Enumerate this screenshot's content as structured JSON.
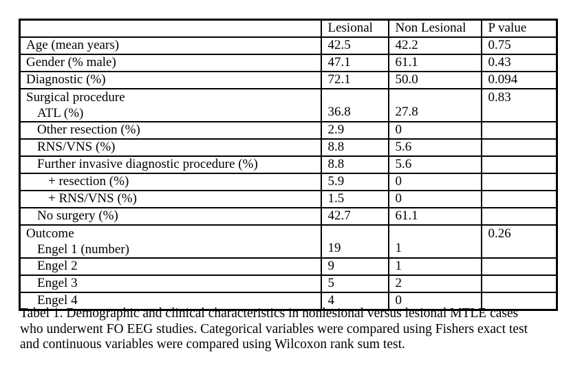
{
  "table": {
    "columns": [
      "",
      "Lesional",
      "Non Lesional",
      "P value"
    ],
    "rows": [
      {
        "label": "Age (mean years)",
        "indent": 0,
        "lesional": "42.5",
        "non_lesional": "42.2",
        "p_value": "0.75"
      },
      {
        "label": "Gender (% male)",
        "indent": 0,
        "lesional": "47.1",
        "non_lesional": "61.1",
        "p_value": "0.43"
      },
      {
        "label": "Diagnostic (%)",
        "indent": 0,
        "lesional": "72.1",
        "non_lesional": "50.0",
        "p_value": "0.094"
      },
      {
        "group_label": "Surgical procedure",
        "label": "ATL (%)",
        "indent": 1,
        "lesional": "36.8",
        "non_lesional": "27.8",
        "p_value": "0.83"
      },
      {
        "label": "Other resection (%)",
        "indent": 1,
        "lesional": "2.9",
        "non_lesional": "0",
        "p_value": ""
      },
      {
        "label": "RNS/VNS (%)",
        "indent": 1,
        "lesional": "8.8",
        "non_lesional": "5.6",
        "p_value": ""
      },
      {
        "label": "Further invasive diagnostic procedure (%)",
        "indent": 1,
        "lesional": "8.8",
        "non_lesional": "5.6",
        "p_value": ""
      },
      {
        "label": "+ resection (%)",
        "indent": 2,
        "lesional": "5.9",
        "non_lesional": "0",
        "p_value": ""
      },
      {
        "label": "+ RNS/VNS (%)",
        "indent": 2,
        "lesional": "1.5",
        "non_lesional": "0",
        "p_value": ""
      },
      {
        "label": "No surgery (%)",
        "indent": 1,
        "lesional": "42.7",
        "non_lesional": "61.1",
        "p_value": ""
      },
      {
        "group_label": "Outcome",
        "label": "Engel 1 (number)",
        "indent": 1,
        "lesional": "19",
        "non_lesional": "1",
        "p_value": "0.26"
      },
      {
        "label": "Engel 2",
        "indent": 1,
        "lesional": "9",
        "non_lesional": "1",
        "p_value": ""
      },
      {
        "label": "Engel 3",
        "indent": 1,
        "lesional": "5",
        "non_lesional": "2",
        "p_value": ""
      },
      {
        "label": "Engel 4",
        "indent": 1,
        "lesional": "4",
        "non_lesional": "0",
        "p_value": ""
      }
    ]
  },
  "caption": {
    "lines": [
      "Tabel 1. Demographic and clinical characteristics in nonlesional versus lesional MTLE cases",
      "who underwent FO EEG studies. Categorical variables were compared using Fishers exact test",
      "and continuous variables were compared using Wilcoxon rank sum test."
    ]
  }
}
